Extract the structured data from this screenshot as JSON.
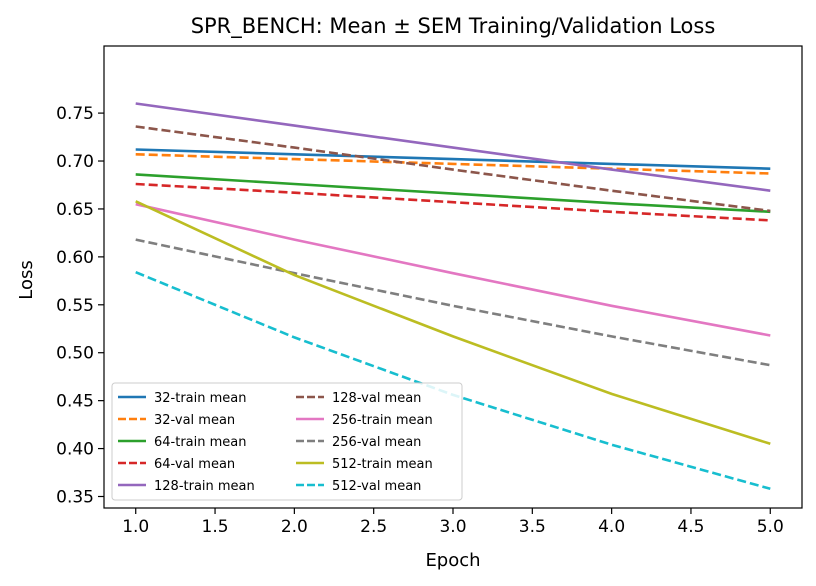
{
  "chart_data": {
    "type": "line",
    "title": "SPR_BENCH: Mean ± SEM Training/Validation Loss",
    "xlabel": "Epoch",
    "ylabel": "Loss",
    "xlim": [
      0.8,
      5.2
    ],
    "ylim": [
      0.338,
      0.82
    ],
    "xticks": [
      "1.0",
      "1.5",
      "2.0",
      "2.5",
      "3.0",
      "3.5",
      "4.0",
      "4.5",
      "5.0"
    ],
    "yticks": [
      "0.35",
      "0.40",
      "0.45",
      "0.50",
      "0.55",
      "0.60",
      "0.65",
      "0.70",
      "0.75"
    ],
    "grid": false,
    "legend": {
      "placement": "lower-left",
      "columns": 2
    },
    "x": [
      1,
      2,
      3,
      4,
      5
    ],
    "series": [
      {
        "name": "32-train mean",
        "color": "#1f77b4",
        "dashed": false,
        "values": [
          0.712,
          0.707,
          0.702,
          0.697,
          0.692
        ]
      },
      {
        "name": "32-val mean",
        "color": "#ff7f0e",
        "dashed": true,
        "values": [
          0.707,
          0.702,
          0.697,
          0.692,
          0.687
        ]
      },
      {
        "name": "64-train mean",
        "color": "#2ca02c",
        "dashed": false,
        "values": [
          0.686,
          0.676,
          0.666,
          0.656,
          0.647
        ]
      },
      {
        "name": "64-val mean",
        "color": "#d62728",
        "dashed": true,
        "values": [
          0.676,
          0.667,
          0.657,
          0.647,
          0.638
        ]
      },
      {
        "name": "128-train mean",
        "color": "#9467bd",
        "dashed": false,
        "values": [
          0.76,
          0.737,
          0.714,
          0.691,
          0.669
        ]
      },
      {
        "name": "128-val mean",
        "color": "#8c564b",
        "dashed": true,
        "values": [
          0.736,
          0.714,
          0.691,
          0.669,
          0.648
        ]
      },
      {
        "name": "256-train mean",
        "color": "#e377c2",
        "dashed": false,
        "values": [
          0.655,
          0.618,
          0.583,
          0.549,
          0.518
        ]
      },
      {
        "name": "256-val mean",
        "color": "#7f7f7f",
        "dashed": true,
        "values": [
          0.618,
          0.583,
          0.549,
          0.517,
          0.487
        ]
      },
      {
        "name": "512-train mean",
        "color": "#bcbd22",
        "dashed": false,
        "values": [
          0.658,
          0.581,
          0.517,
          0.457,
          0.405
        ]
      },
      {
        "name": "512-val mean",
        "color": "#17becf",
        "dashed": true,
        "values": [
          0.584,
          0.516,
          0.456,
          0.404,
          0.358
        ]
      }
    ]
  }
}
